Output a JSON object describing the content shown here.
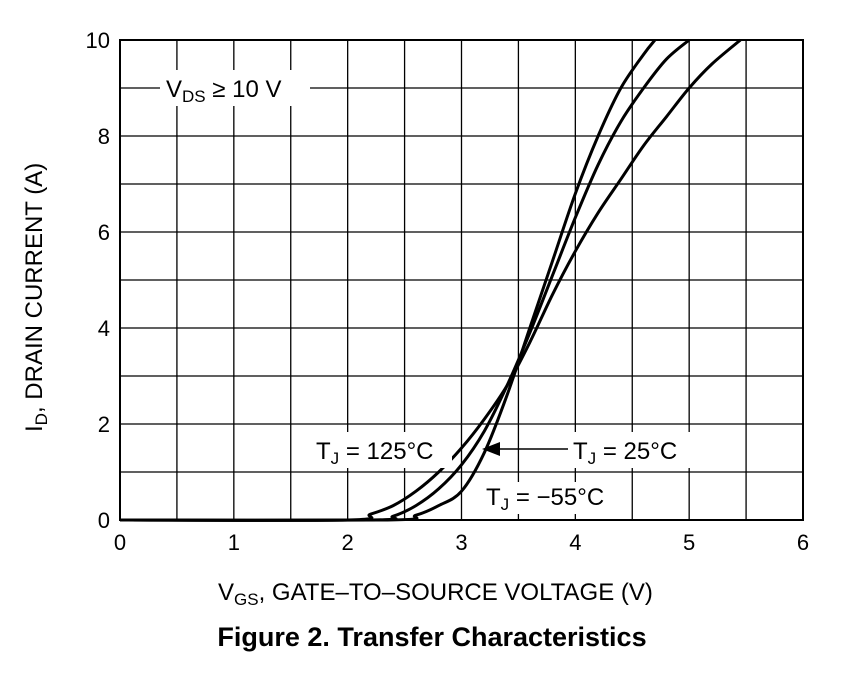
{
  "chart_data": {
    "type": "line",
    "title": "Figure 2. Transfer Characteristics",
    "xlabel": {
      "main": "V",
      "sub": "GS",
      "rest": ", GATE–TO–SOURCE VOLTAGE (V)"
    },
    "ylabel": {
      "main": "I",
      "sub": "D",
      "rest": ", DRAIN CURRENT (A)"
    },
    "xlim": [
      0,
      6
    ],
    "ylim": [
      0,
      10
    ],
    "xticks": [
      "0",
      "1",
      "2",
      "3",
      "4",
      "5",
      "6"
    ],
    "yticks": [
      "0",
      "2",
      "4",
      "6",
      "8",
      "10"
    ],
    "grid": true,
    "condition": {
      "main": "V",
      "sub": "DS",
      "rest": " ≥ 10 V"
    },
    "series": [
      {
        "name": {
          "main": "T",
          "sub": "J",
          "rest": " = 125°C"
        },
        "x": [
          0,
          2.0,
          2.2,
          2.4,
          2.6,
          2.8,
          3.0,
          3.2,
          3.4,
          3.6,
          3.8,
          4.0,
          4.2,
          4.4,
          4.6,
          4.8,
          5.0,
          5.2,
          5.45
        ],
        "y": [
          0,
          0,
          0.12,
          0.3,
          0.6,
          1.0,
          1.5,
          2.1,
          2.8,
          3.7,
          4.7,
          5.6,
          6.4,
          7.1,
          7.8,
          8.4,
          9.0,
          9.5,
          10.0
        ]
      },
      {
        "name": {
          "main": "T",
          "sub": "J",
          "rest": " = 25°C"
        },
        "x": [
          0,
          2.2,
          2.4,
          2.6,
          2.8,
          3.0,
          3.2,
          3.4,
          3.6,
          3.8,
          4.0,
          4.2,
          4.4,
          4.6,
          4.8,
          5.0
        ],
        "y": [
          0,
          0,
          0.08,
          0.3,
          0.65,
          1.15,
          1.85,
          2.8,
          3.9,
          5.1,
          6.3,
          7.4,
          8.3,
          9.0,
          9.6,
          10.0
        ]
      },
      {
        "name": {
          "main": "T",
          "sub": "J",
          "rest": " = −55°C"
        },
        "x": [
          0,
          2.35,
          2.6,
          2.8,
          3.0,
          3.2,
          3.4,
          3.6,
          3.8,
          4.0,
          4.2,
          4.4,
          4.6,
          4.7
        ],
        "y": [
          0,
          0,
          0.1,
          0.3,
          0.6,
          1.4,
          2.6,
          4.0,
          5.4,
          6.8,
          8.0,
          9.0,
          9.7,
          10.0
        ]
      }
    ],
    "colors": {
      "line": "#000000",
      "grid": "#000000",
      "background": "#ffffff"
    }
  }
}
